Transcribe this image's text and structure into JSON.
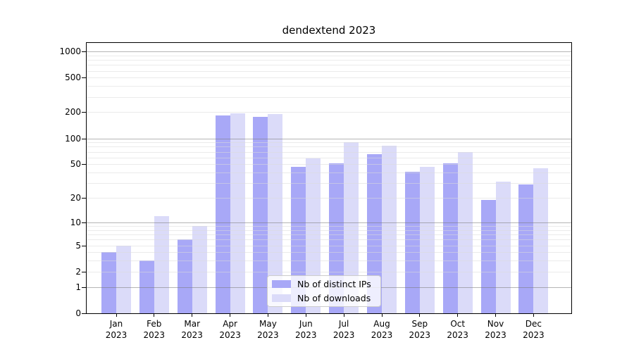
{
  "title": "dendextend 2023",
  "chart_data": {
    "type": "bar",
    "title": "dendextend 2023",
    "categories": [
      "Jan",
      "Feb",
      "Mar",
      "Apr",
      "May",
      "Jun",
      "Jul",
      "Aug",
      "Sep",
      "Oct",
      "Nov",
      "Dec"
    ],
    "category_year": "2023",
    "series": [
      {
        "name": "Nb of distinct IPs",
        "color": "#a8a8f7",
        "values": [
          4,
          3,
          6,
          184,
          176,
          47,
          51,
          65,
          41,
          51,
          19,
          29
        ]
      },
      {
        "name": "Nb of downloads",
        "color": "#dbdbf9",
        "values": [
          5,
          12,
          9,
          195,
          190,
          58,
          91,
          82,
          47,
          70,
          31,
          45
        ]
      }
    ],
    "yscale": "log1p",
    "ylim": [
      0,
      1000
    ],
    "yticks": [
      0,
      1,
      2,
      5,
      10,
      20,
      50,
      100,
      200,
      500,
      1000
    ],
    "major_gridlines": [
      1,
      10,
      100,
      1000
    ],
    "grid": true,
    "legend_position": "lower center",
    "xlabel": "",
    "ylabel": ""
  }
}
